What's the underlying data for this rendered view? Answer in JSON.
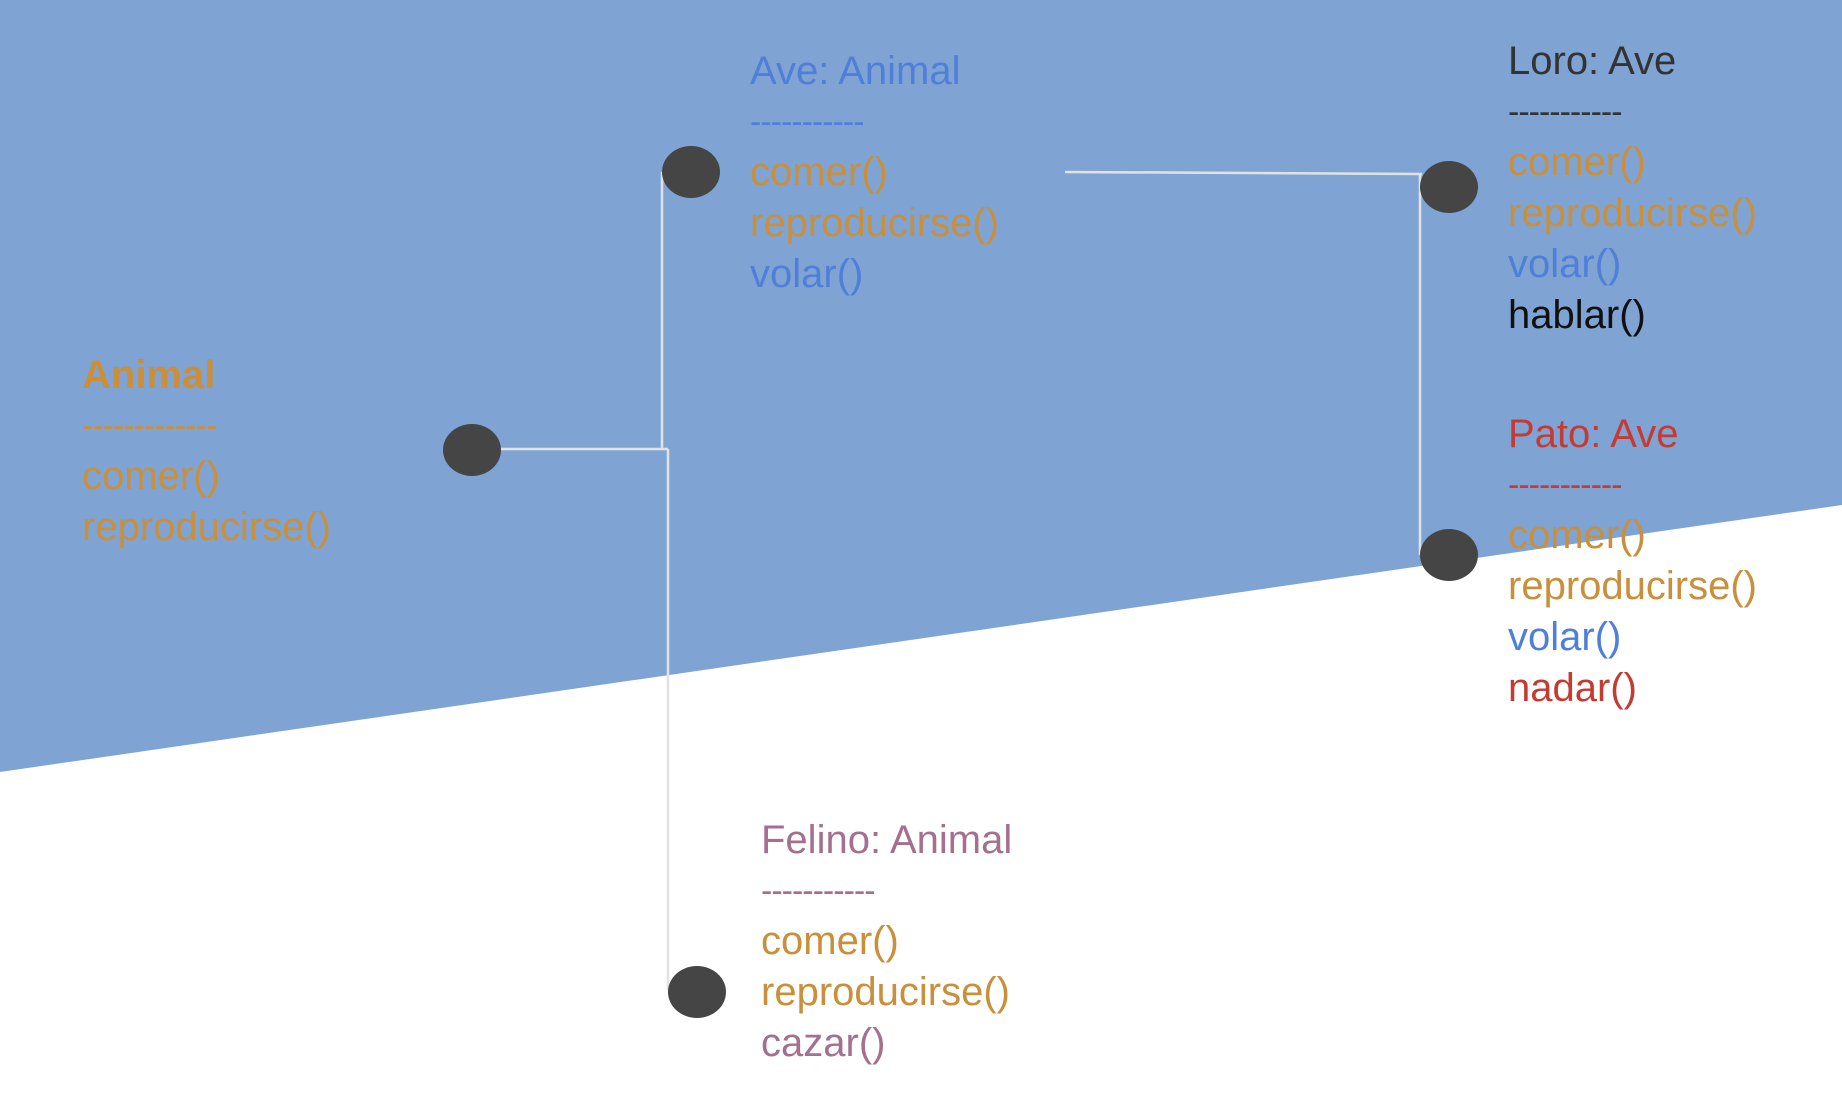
{
  "colors": {
    "background_band": "#7fa4d3",
    "connector": "#e2e2e2",
    "node": "#454545",
    "inherited_method": "#c98f3a",
    "ave": "#4f7fd8",
    "loro": "#333333",
    "pato": "#c43b33",
    "felino": "#a56f8e"
  },
  "classes": [
    {
      "id": "animal",
      "title": "Animal",
      "separator": "-------------",
      "title_color": "#c98f3a",
      "bold": true,
      "methods": [
        {
          "label": "comer()",
          "color": "#c98f3a"
        },
        {
          "label": "reproducirse()",
          "color": "#c98f3a"
        }
      ]
    },
    {
      "id": "ave",
      "title": "Ave: Animal",
      "separator": "-----------",
      "title_color": "#4f7fd8",
      "methods": [
        {
          "label": "comer()",
          "color": "#c98f3a"
        },
        {
          "label": "reproducirse()",
          "color": "#c98f3a"
        },
        {
          "label": "volar()",
          "color": "#4f7fd8"
        }
      ]
    },
    {
      "id": "loro",
      "title": "Loro: Ave",
      "separator": "-----------",
      "title_color": "#333333",
      "methods": [
        {
          "label": "comer()",
          "color": "#c98f3a"
        },
        {
          "label": "reproducirse()",
          "color": "#c98f3a"
        },
        {
          "label": "volar()",
          "color": "#4f7fd8"
        },
        {
          "label": "hablar()",
          "color": "#111111"
        }
      ]
    },
    {
      "id": "pato",
      "title": "Pato: Ave",
      "separator": "-----------",
      "title_color": "#c43b33",
      "methods": [
        {
          "label": "comer()",
          "color": "#c98f3a"
        },
        {
          "label": "reproducirse()",
          "color": "#c98f3a"
        },
        {
          "label": "volar()",
          "color": "#4f7fd8"
        },
        {
          "label": "nadar()",
          "color": "#c43b33"
        }
      ]
    },
    {
      "id": "felino",
      "title": "Felino: Animal",
      "separator": "-----------",
      "title_color": "#a56f8e",
      "methods": [
        {
          "label": "comer()",
          "color": "#c98f3a"
        },
        {
          "label": "reproducirse()",
          "color": "#c98f3a"
        },
        {
          "label": "cazar()",
          "color": "#a56f8e"
        }
      ]
    }
  ]
}
